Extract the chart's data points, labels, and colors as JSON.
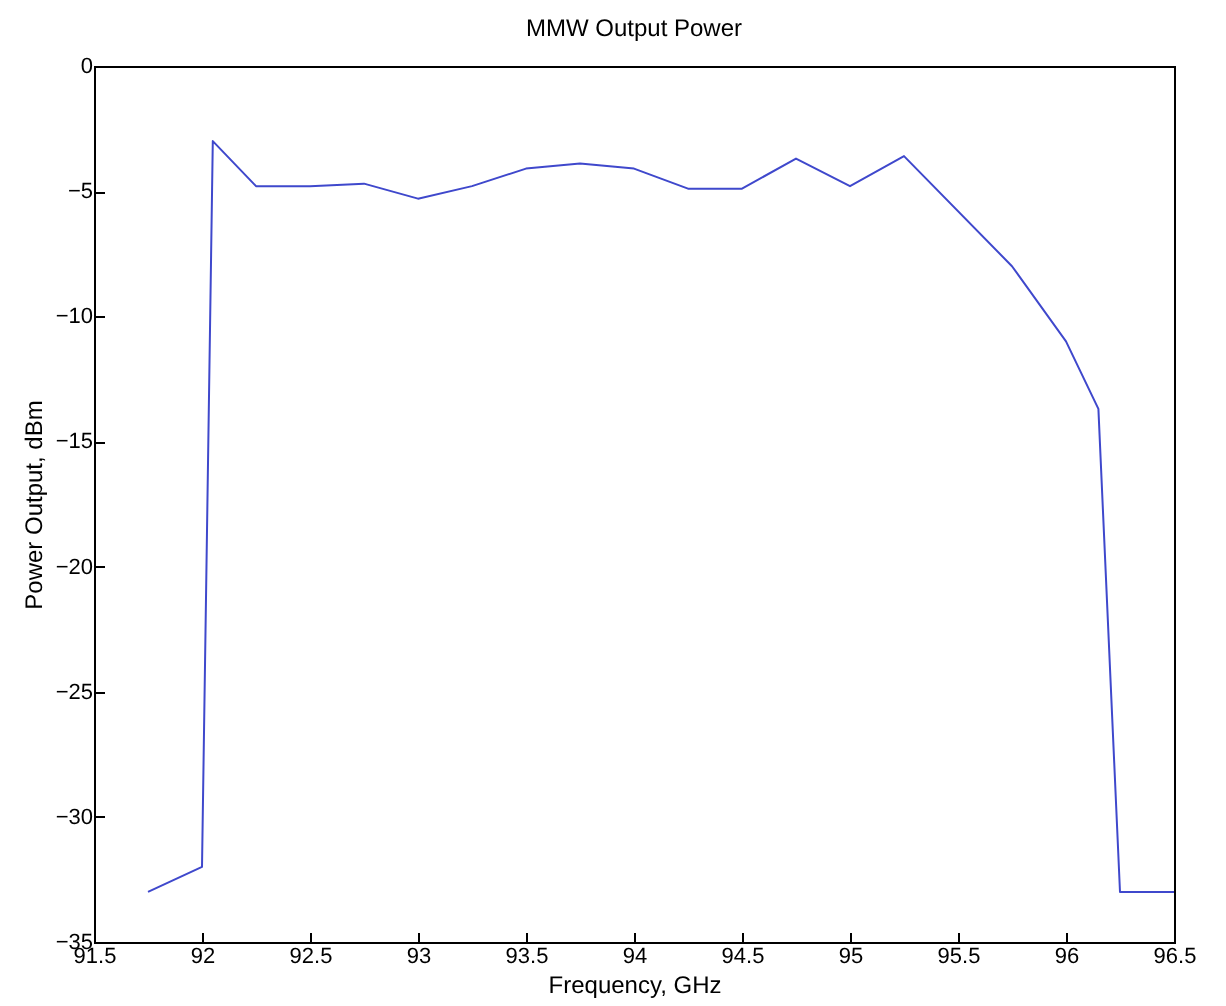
{
  "chart_data": {
    "type": "line",
    "title": "MMW Output Power",
    "xlabel": "Frequency, GHz",
    "ylabel": "Power Output, dBm",
    "x": [
      91.75,
      92,
      92.05,
      92.25,
      92.5,
      92.75,
      93,
      93.25,
      93.5,
      93.75,
      94,
      94.25,
      94.5,
      94.75,
      95,
      95.25,
      95.75,
      96,
      96.15,
      96.25,
      96.5
    ],
    "series": [
      {
        "color": "#3f48cc",
        "values": [
          -33,
          -32,
          -3,
          -4.8,
          -4.8,
          -4.7,
          -5.3,
          -4.8,
          -4.1,
          -3.9,
          -4.1,
          -4.9,
          -4.9,
          -3.7,
          -4.8,
          -3.6,
          -8,
          -11,
          -13.7,
          -33,
          -33
        ]
      }
    ],
    "xlim": [
      91.5,
      96.5
    ],
    "xticks": [
      91.5,
      92,
      92.5,
      93,
      93.5,
      94,
      94.5,
      95,
      95.5,
      96,
      96.5
    ],
    "ylim": [
      -35,
      0
    ],
    "yticks": [
      -35,
      -30,
      -25,
      -20,
      -15,
      -10,
      -5,
      0
    ],
    "grid": false,
    "legend": false
  }
}
